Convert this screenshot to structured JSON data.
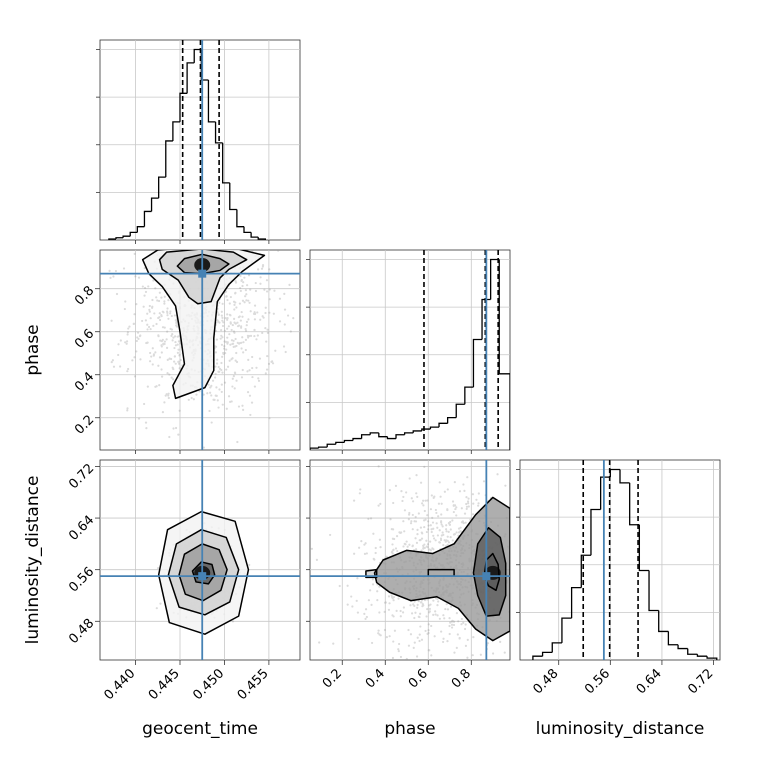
{
  "chart_data": {
    "type": "corner",
    "parameters": [
      {
        "name": "geocent_time",
        "label": "geocent_time",
        "range": [
          0.436,
          0.4585
        ],
        "ticks": [
          0.44,
          0.445,
          0.45,
          0.455
        ],
        "tick_labels": [
          "0.440",
          "0.445",
          "0.450",
          "0.455"
        ],
        "truth": 0.4475,
        "quantiles": [
          0.4453,
          0.4473,
          0.4494
        ],
        "histogram": {
          "bin_edges": [
            0.437,
            0.4378,
            0.4386,
            0.4394,
            0.4402,
            0.441,
            0.4418,
            0.4426,
            0.4434,
            0.4442,
            0.445,
            0.4458,
            0.4466,
            0.4474,
            0.4482,
            0.449,
            0.4498,
            0.4506,
            0.4514,
            0.4522,
            0.453,
            0.4538,
            0.4546
          ],
          "relative_counts": [
            0.005,
            0.012,
            0.02,
            0.04,
            0.07,
            0.15,
            0.22,
            0.33,
            0.52,
            0.62,
            0.77,
            0.93,
            1.0,
            0.84,
            0.62,
            0.51,
            0.3,
            0.16,
            0.07,
            0.04,
            0.015,
            0.005
          ]
        }
      },
      {
        "name": "phase",
        "label": "phase",
        "range": [
          0.05,
          0.98
        ],
        "ticks": [
          0.2,
          0.4,
          0.6,
          0.8
        ],
        "tick_labels": [
          "0.2",
          "0.4",
          "0.6",
          "0.8"
        ],
        "truth": 0.87,
        "quantiles": [
          0.58,
          0.865,
          0.925
        ],
        "histogram": {
          "bin_edges": [
            0.05,
            0.09,
            0.13,
            0.17,
            0.21,
            0.25,
            0.29,
            0.33,
            0.37,
            0.41,
            0.45,
            0.49,
            0.53,
            0.57,
            0.61,
            0.65,
            0.69,
            0.73,
            0.77,
            0.81,
            0.85,
            0.89,
            0.93,
            0.98
          ],
          "relative_counts": [
            0.01,
            0.015,
            0.03,
            0.04,
            0.05,
            0.06,
            0.08,
            0.09,
            0.07,
            0.06,
            0.08,
            0.09,
            0.1,
            0.11,
            0.12,
            0.14,
            0.17,
            0.24,
            0.33,
            0.58,
            0.79,
            1.0,
            0.4
          ]
        }
      },
      {
        "name": "luminosity_distance",
        "label": "luminosity_distance",
        "range": [
          0.42,
          0.73
        ],
        "ticks": [
          0.48,
          0.56,
          0.64,
          0.72
        ],
        "tick_labels": [
          "0.48",
          "0.56",
          "0.64",
          "0.72"
        ],
        "truth": 0.55,
        "quantiles": [
          0.518,
          0.559,
          0.603
        ],
        "histogram": {
          "bin_edges": [
            0.44,
            0.455,
            0.47,
            0.485,
            0.5,
            0.515,
            0.53,
            0.545,
            0.56,
            0.575,
            0.59,
            0.605,
            0.62,
            0.635,
            0.65,
            0.665,
            0.68,
            0.695,
            0.71,
            0.725
          ],
          "relative_counts": [
            0.02,
            0.04,
            0.09,
            0.22,
            0.38,
            0.55,
            0.79,
            0.96,
            1.0,
            0.93,
            0.71,
            0.47,
            0.26,
            0.15,
            0.08,
            0.06,
            0.03,
            0.02,
            0.01
          ]
        }
      }
    ],
    "pairs": [
      {
        "x": "geocent_time",
        "y": "phase",
        "contours": [
          [
            [
              0.4455,
              0.94
            ],
            [
              0.4475,
              0.96
            ],
            [
              0.4495,
              0.94
            ],
            [
              0.4505,
              0.915
            ],
            [
              0.4495,
              0.885
            ],
            [
              0.4475,
              0.87
            ],
            [
              0.4455,
              0.875
            ],
            [
              0.4447,
              0.905
            ]
          ],
          [
            [
              0.4435,
              0.97
            ],
            [
              0.4475,
              0.985
            ],
            [
              0.451,
              0.97
            ],
            [
              0.4525,
              0.935
            ],
            [
              0.4505,
              0.89
            ],
            [
              0.4495,
              0.85
            ],
            [
              0.4485,
              0.74
            ],
            [
              0.447,
              0.73
            ],
            [
              0.446,
              0.76
            ],
            [
              0.4448,
              0.84
            ],
            [
              0.443,
              0.89
            ],
            [
              0.4427,
              0.935
            ]
          ],
          [
            [
              0.4425,
              0.98
            ],
            [
              0.447,
              0.995
            ],
            [
              0.4515,
              0.985
            ],
            [
              0.4545,
              0.955
            ],
            [
              0.452,
              0.88
            ],
            [
              0.4505,
              0.82
            ],
            [
              0.4492,
              0.74
            ],
            [
              0.4488,
              0.57
            ],
            [
              0.4488,
              0.42
            ],
            [
              0.4478,
              0.34
            ],
            [
              0.4445,
              0.29
            ],
            [
              0.4442,
              0.35
            ],
            [
              0.4455,
              0.45
            ],
            [
              0.445,
              0.6
            ],
            [
              0.4445,
              0.72
            ],
            [
              0.443,
              0.81
            ],
            [
              0.4415,
              0.87
            ],
            [
              0.4408,
              0.935
            ]
          ]
        ],
        "core": [
          0.4475,
          0.91
        ]
      },
      {
        "x": "geocent_time",
        "y": "luminosity_distance",
        "contours": [
          [
            [
              0.4464,
              0.558
            ],
            [
              0.4474,
              0.572
            ],
            [
              0.4486,
              0.568
            ],
            [
              0.4489,
              0.552
            ],
            [
              0.4482,
              0.538
            ],
            [
              0.4468,
              0.541
            ]
          ],
          [
            [
              0.4449,
              0.552
            ],
            [
              0.4455,
              0.584
            ],
            [
              0.4475,
              0.6
            ],
            [
              0.4494,
              0.591
            ],
            [
              0.4503,
              0.56
            ],
            [
              0.4496,
              0.528
            ],
            [
              0.4476,
              0.512
            ],
            [
              0.4456,
              0.522
            ]
          ],
          [
            [
              0.4437,
              0.552
            ],
            [
              0.4446,
              0.6
            ],
            [
              0.4474,
              0.622
            ],
            [
              0.4502,
              0.61
            ],
            [
              0.4516,
              0.56
            ],
            [
              0.4506,
              0.51
            ],
            [
              0.4478,
              0.49
            ],
            [
              0.4449,
              0.502
            ]
          ],
          [
            [
              0.4426,
              0.552
            ],
            [
              0.4436,
              0.622
            ],
            [
              0.4474,
              0.65
            ],
            [
              0.4512,
              0.635
            ],
            [
              0.4527,
              0.56
            ],
            [
              0.4516,
              0.488
            ],
            [
              0.4478,
              0.46
            ],
            [
              0.4438,
              0.478
            ]
          ]
        ],
        "core": [
          0.4475,
          0.555
        ]
      },
      {
        "x": "phase",
        "y": "luminosity_distance",
        "contours": [
          [
            [
              0.88,
              0.535
            ],
            [
              0.86,
              0.55
            ],
            [
              0.87,
              0.575
            ],
            [
              0.9,
              0.585
            ],
            [
              0.925,
              0.568
            ],
            [
              0.93,
              0.545
            ],
            [
              0.915,
              0.528
            ]
          ],
          [
            [
              0.83,
              0.52
            ],
            [
              0.81,
              0.555
            ],
            [
              0.83,
              0.6
            ],
            [
              0.88,
              0.625
            ],
            [
              0.935,
              0.61
            ],
            [
              0.96,
              0.57
            ],
            [
              0.96,
              0.52
            ],
            [
              0.93,
              0.49
            ],
            [
              0.87,
              0.488
            ]
          ],
          [
            [
              0.35,
              0.555
            ],
            [
              0.39,
              0.575
            ],
            [
              0.5,
              0.59
            ],
            [
              0.62,
              0.585
            ],
            [
              0.72,
              0.6
            ],
            [
              0.82,
              0.645
            ],
            [
              0.9,
              0.672
            ],
            [
              0.98,
              0.655
            ],
            [
              0.98,
              0.465
            ],
            [
              0.9,
              0.45
            ],
            [
              0.82,
              0.468
            ],
            [
              0.74,
              0.5
            ],
            [
              0.64,
              0.518
            ],
            [
              0.52,
              0.512
            ],
            [
              0.42,
              0.525
            ],
            [
              0.36,
              0.54
            ]
          ],
          [
            [
              0.31,
              0.548
            ],
            [
              0.36,
              0.548
            ],
            [
              0.36,
              0.56
            ],
            [
              0.31,
              0.558
            ]
          ],
          [
            [
              0.6,
              0.55
            ],
            [
              0.72,
              0.55
            ],
            [
              0.72,
              0.56
            ],
            [
              0.6,
              0.56
            ]
          ]
        ],
        "core": [
          0.9,
          0.555
        ]
      }
    ],
    "grid": true,
    "truth_color": "#4682b4",
    "contour_color": "#000000",
    "scatter_color": "#9a9a9a",
    "quantile_style": "dashed",
    "title": ""
  }
}
